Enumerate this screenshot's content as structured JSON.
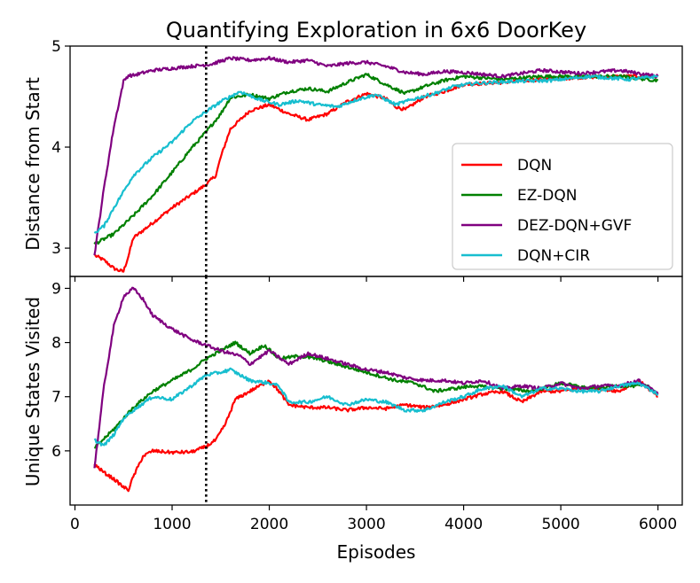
{
  "chart_data": [
    {
      "type": "line",
      "title": "Quantifying Exploration in 6x6 DoorKey",
      "xlabel": "",
      "ylabel": "Distance from Start",
      "xlim": [
        -50,
        6250
      ],
      "ylim": [
        2.72,
        5.0
      ],
      "xticks": [
        0,
        1000,
        2000,
        3000,
        4000,
        5000,
        6000
      ],
      "xtick_labels_visible": false,
      "yticks": [
        3,
        4,
        5
      ],
      "ytick_labels": [
        "3",
        "4",
        "5"
      ],
      "vline_x": 1350,
      "legend": {
        "placement": "center-right"
      },
      "series": [
        {
          "name": "DQN",
          "color": "#ff0000",
          "x": [
            200,
            300,
            400,
            450,
            500,
            550,
            600,
            800,
            1000,
            1200,
            1350,
            1450,
            1500,
            1600,
            1800,
            2000,
            2200,
            2400,
            2600,
            2800,
            3000,
            3200,
            3300,
            3400,
            3600,
            3800,
            4000,
            4400,
            4800,
            5200,
            5600,
            6000
          ],
          "values": [
            2.93,
            2.88,
            2.8,
            2.78,
            2.77,
            2.92,
            3.1,
            3.25,
            3.4,
            3.53,
            3.63,
            3.72,
            3.9,
            4.18,
            4.36,
            4.42,
            4.33,
            4.27,
            4.33,
            4.45,
            4.53,
            4.48,
            4.4,
            4.37,
            4.5,
            4.55,
            4.62,
            4.64,
            4.67,
            4.69,
            4.7,
            4.7
          ]
        },
        {
          "name": "EZ-DQN",
          "color": "#008000",
          "x": [
            200,
            400,
            600,
            800,
            1000,
            1200,
            1350,
            1500,
            1600,
            1800,
            2000,
            2200,
            2400,
            2600,
            2800,
            3000,
            3200,
            3400,
            3600,
            3800,
            4000,
            4400,
            4800,
            5200,
            5600,
            6000
          ],
          "values": [
            3.04,
            3.14,
            3.32,
            3.52,
            3.75,
            3.99,
            4.15,
            4.33,
            4.49,
            4.52,
            4.48,
            4.55,
            4.58,
            4.55,
            4.64,
            4.72,
            4.62,
            4.53,
            4.6,
            4.66,
            4.7,
            4.67,
            4.7,
            4.7,
            4.7,
            4.66
          ]
        },
        {
          "name": "DEZ-DQN+GVF",
          "color": "#800080",
          "x": [
            200,
            300,
            400,
            500,
            550,
            600,
            800,
            1000,
            1200,
            1400,
            1600,
            1800,
            2000,
            2200,
            2400,
            2600,
            2800,
            3000,
            3200,
            3400,
            3600,
            3800,
            4000,
            4400,
            4800,
            5200,
            5600,
            6000
          ],
          "values": [
            2.93,
            3.6,
            4.2,
            4.65,
            4.71,
            4.71,
            4.76,
            4.78,
            4.8,
            4.82,
            4.88,
            4.86,
            4.88,
            4.84,
            4.86,
            4.8,
            4.83,
            4.84,
            4.8,
            4.74,
            4.72,
            4.75,
            4.74,
            4.7,
            4.76,
            4.73,
            4.76,
            4.7
          ]
        },
        {
          "name": "DQN+CIR",
          "color": "#17becf",
          "x": [
            200,
            300,
            400,
            600,
            800,
            1000,
            1200,
            1350,
            1500,
            1700,
            1900,
            2100,
            2300,
            2500,
            2700,
            2900,
            3100,
            3300,
            3500,
            3700,
            3900,
            4100,
            4500,
            4900,
            5300,
            5700,
            6000
          ],
          "values": [
            3.15,
            3.22,
            3.4,
            3.72,
            3.9,
            4.05,
            4.25,
            4.35,
            4.45,
            4.55,
            4.47,
            4.42,
            4.46,
            4.42,
            4.4,
            4.47,
            4.52,
            4.42,
            4.48,
            4.53,
            4.6,
            4.63,
            4.65,
            4.66,
            4.7,
            4.67,
            4.7
          ]
        }
      ]
    },
    {
      "type": "line",
      "title": "",
      "xlabel": "Episodes",
      "ylabel": "Unique States Visited",
      "xlim": [
        -50,
        6250
      ],
      "ylim": [
        5.0,
        9.22
      ],
      "xticks": [
        0,
        1000,
        2000,
        3000,
        4000,
        5000,
        6000
      ],
      "xtick_labels": [
        "0",
        "1000",
        "2000",
        "3000",
        "4000",
        "5000",
        "6000"
      ],
      "yticks": [
        6,
        7,
        8,
        9
      ],
      "ytick_labels": [
        "6",
        "7",
        "8",
        "9"
      ],
      "vline_x": 1350,
      "series": [
        {
          "name": "DQN",
          "color": "#ff0000",
          "x": [
            200,
            300,
            400,
            500,
            550,
            600,
            700,
            800,
            1000,
            1200,
            1350,
            1450,
            1550,
            1650,
            1800,
            2000,
            2100,
            2200,
            2400,
            2600,
            2800,
            3000,
            3200,
            3400,
            3600,
            3800,
            4000,
            4200,
            4400,
            4600,
            4800,
            5000,
            5200,
            5400,
            5600,
            5800,
            6000
          ],
          "values": [
            5.75,
            5.6,
            5.48,
            5.33,
            5.28,
            5.52,
            5.9,
            6.0,
            5.97,
            5.98,
            6.08,
            6.2,
            6.5,
            6.95,
            7.1,
            7.3,
            7.1,
            6.85,
            6.8,
            6.8,
            6.75,
            6.8,
            6.78,
            6.85,
            6.8,
            6.85,
            6.95,
            7.05,
            7.1,
            6.9,
            7.1,
            7.1,
            7.15,
            7.15,
            7.1,
            7.3,
            7.0
          ]
        },
        {
          "name": "EZ-DQN",
          "color": "#008000",
          "x": [
            200,
            400,
            600,
            800,
            1000,
            1200,
            1350,
            1500,
            1650,
            1800,
            1950,
            2100,
            2300,
            2500,
            2700,
            2900,
            3100,
            3300,
            3500,
            3700,
            3900,
            4100,
            4400,
            4700,
            5000,
            5300,
            5600,
            5900,
            6000
          ],
          "values": [
            6.05,
            6.4,
            6.8,
            7.1,
            7.3,
            7.5,
            7.7,
            7.85,
            8.0,
            7.8,
            7.95,
            7.7,
            7.75,
            7.7,
            7.6,
            7.5,
            7.4,
            7.3,
            7.25,
            7.1,
            7.15,
            7.2,
            7.15,
            7.1,
            7.25,
            7.15,
            7.2,
            7.2,
            7.05
          ]
        },
        {
          "name": "DEZ-DQN+GVF",
          "color": "#800080",
          "x": [
            200,
            300,
            400,
            500,
            600,
            700,
            800,
            1000,
            1200,
            1350,
            1500,
            1700,
            1800,
            2000,
            2200,
            2400,
            2600,
            2800,
            3000,
            3200,
            3400,
            3600,
            3800,
            4000,
            4200,
            4400,
            4600,
            4800,
            5000,
            5200,
            5400,
            5600,
            5800,
            6000
          ],
          "values": [
            5.68,
            7.2,
            8.3,
            8.85,
            9.0,
            8.8,
            8.5,
            8.25,
            8.05,
            7.95,
            7.85,
            7.75,
            7.6,
            7.85,
            7.6,
            7.8,
            7.7,
            7.6,
            7.5,
            7.45,
            7.35,
            7.3,
            7.3,
            7.25,
            7.3,
            7.15,
            7.2,
            7.15,
            7.25,
            7.15,
            7.2,
            7.2,
            7.3,
            7.05
          ]
        },
        {
          "name": "DQN+CIR",
          "color": "#17becf",
          "x": [
            200,
            300,
            400,
            500,
            600,
            800,
            1000,
            1200,
            1350,
            1500,
            1600,
            1800,
            2000,
            2100,
            2200,
            2400,
            2600,
            2800,
            3000,
            3200,
            3400,
            3600,
            3800,
            4000,
            4200,
            4400,
            4600,
            4800,
            5000,
            5200,
            5400,
            5600,
            5800,
            6000
          ],
          "values": [
            6.2,
            6.1,
            6.3,
            6.6,
            6.75,
            7.0,
            6.95,
            7.2,
            7.4,
            7.45,
            7.5,
            7.3,
            7.25,
            7.2,
            6.9,
            6.9,
            7.0,
            6.85,
            6.95,
            6.9,
            6.75,
            6.75,
            6.9,
            7.0,
            7.15,
            7.2,
            7.0,
            7.15,
            7.15,
            7.1,
            7.1,
            7.2,
            7.25,
            7.05
          ]
        }
      ]
    }
  ]
}
